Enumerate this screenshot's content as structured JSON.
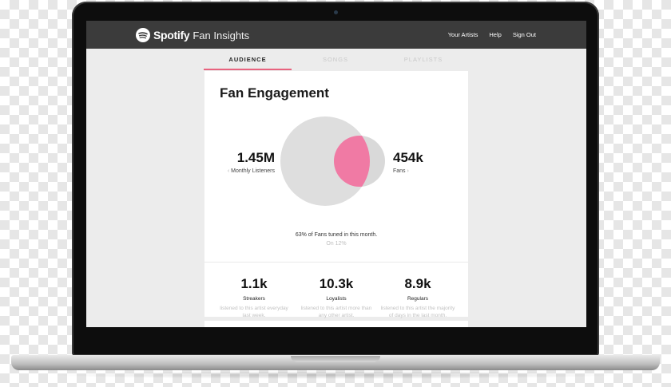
{
  "header": {
    "brand_word": "Spotify",
    "product_name": "Fan Insights",
    "nav": [
      "Your Artists",
      "Help",
      "Sign Out"
    ]
  },
  "tabs": [
    {
      "label": "AUDIENCE",
      "active": true
    },
    {
      "label": "SONGS",
      "active": false
    },
    {
      "label": "PLAYLISTS",
      "active": false
    }
  ],
  "engagement": {
    "title": "Fan Engagement",
    "monthly_listeners": {
      "value": "1.45M",
      "label": "Monthly Listeners"
    },
    "fans": {
      "value": "454k",
      "label": "Fans"
    },
    "caption": "63% of Fans tuned in this month.",
    "caption_sub": "On 12%"
  },
  "stats": [
    {
      "value": "1.1k",
      "label": "Streakers",
      "desc": "listened to this artist everyday last week."
    },
    {
      "value": "10.3k",
      "label": "Loyalists",
      "desc": "listened to this artist more than any other artist."
    },
    {
      "value": "8.9k",
      "label": "Regulars",
      "desc": "listened to this artist the majority of days in the last month."
    }
  ],
  "colors": {
    "accent": "#e8637f",
    "overlap": "#f07aa4",
    "header_bg": "#3b3b3b"
  }
}
